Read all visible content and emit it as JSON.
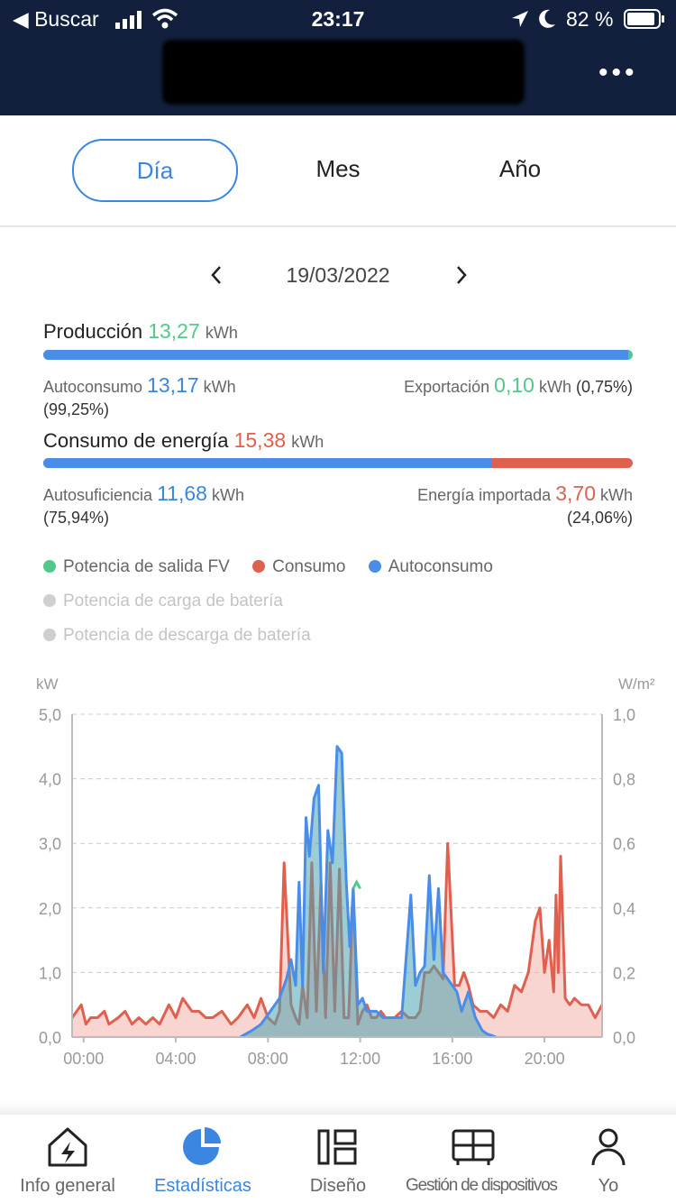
{
  "status_bar": {
    "back_label": "Buscar",
    "time": "23:17",
    "battery": "82 %"
  },
  "header": {
    "more_icon": "more-dots-icon"
  },
  "tabs": [
    {
      "label": "Día",
      "active": true
    },
    {
      "label": "Mes",
      "active": false
    },
    {
      "label": "Año",
      "active": false
    }
  ],
  "date": {
    "value": "19/03/2022"
  },
  "production": {
    "title": "Producción",
    "value": "13,27",
    "unit": "kWh",
    "self_share": 0.9925,
    "left_label": "Autoconsumo",
    "left_value": "13,17",
    "left_unit": "kWh",
    "left_pct": "(99,25%)",
    "right_label": "Exportación",
    "right_value": "0,10",
    "right_unit": "kWh",
    "right_pct": "(0,75%)"
  },
  "consumption": {
    "title": "Consumo de energía",
    "value": "15,38",
    "unit": "kWh",
    "self_share": 0.7594,
    "left_label": "Autosuficiencia",
    "left_value": "11,68",
    "left_unit": "kWh",
    "left_pct": "(75,94%)",
    "right_label": "Energía importada",
    "right_value": "3,70",
    "right_unit": "kWh",
    "right_pct": "(24,06%)"
  },
  "legend": [
    {
      "label": "Potencia de salida FV",
      "color": "#52c98a",
      "active": true
    },
    {
      "label": "Consumo",
      "color": "#e0604f",
      "active": true
    },
    {
      "label": "Autoconsumo",
      "color": "#4a8de8",
      "active": true
    },
    {
      "label": "Potencia de carga de batería",
      "color": "#cfcfcf",
      "active": false
    },
    {
      "label": "Potencia de descarga de batería",
      "color": "#cfcfcf",
      "active": false
    }
  ],
  "colors": {
    "accent": "#3a86e0",
    "green": "#52c98a",
    "red": "#e0604f",
    "blue": "#4a8de8"
  },
  "nav": [
    {
      "label": "Info general",
      "icon": "house-bolt-icon",
      "active": false
    },
    {
      "label": "Estadísticas",
      "icon": "pie-chart-icon",
      "active": true
    },
    {
      "label": "Diseño",
      "icon": "layout-icon",
      "active": false
    },
    {
      "label": "Gestión de dispositivos",
      "icon": "device-icon",
      "active": false
    },
    {
      "label": "Yo",
      "icon": "user-icon",
      "active": false
    }
  ],
  "chart_data": {
    "type": "area",
    "y_left_unit": "kW",
    "y_right_unit": "W/m²",
    "ylim": [
      0,
      5
    ],
    "y2lim": [
      0,
      1
    ],
    "y_ticks": [
      "0,0",
      "1,0",
      "2,0",
      "3,0",
      "4,0",
      "5,0"
    ],
    "y2_ticks": [
      "0,0",
      "0,2",
      "0,4",
      "0,6",
      "0,8",
      "1,0"
    ],
    "x_ticks": [
      {
        "t": 0.5,
        "label": "00:00"
      },
      {
        "t": 4.5,
        "label": "04:00"
      },
      {
        "t": 8.5,
        "label": "08:00"
      },
      {
        "t": 12.5,
        "label": "12:00"
      },
      {
        "t": 16.5,
        "label": "16:00"
      },
      {
        "t": 20.5,
        "label": "20:00"
      }
    ],
    "xlim": [
      0,
      23
    ],
    "grid": true,
    "series": [
      {
        "name": "Consumo",
        "color": "#e0604f",
        "x": [
          0,
          0.4,
          0.6,
          0.8,
          1.1,
          1.4,
          1.6,
          2.0,
          2.3,
          2.6,
          2.9,
          3.2,
          3.5,
          3.8,
          4.2,
          4.5,
          4.8,
          5.2,
          5.5,
          5.8,
          6.1,
          6.5,
          6.9,
          7.2,
          7.6,
          7.9,
          8.2,
          8.5,
          8.8,
          9.0,
          9.2,
          9.5,
          9.7,
          9.85,
          10.0,
          10.2,
          10.4,
          10.6,
          10.8,
          11.0,
          11.2,
          11.4,
          11.6,
          11.8,
          12.0,
          12.2,
          12.4,
          12.6,
          12.8,
          13.0,
          13.2,
          13.4,
          13.6,
          14.0,
          14.3,
          14.6,
          14.9,
          15.1,
          15.3,
          15.5,
          15.7,
          15.9,
          16.1,
          16.3,
          16.6,
          16.8,
          17.0,
          17.2,
          17.4,
          17.7,
          18.0,
          18.3,
          18.6,
          18.9,
          19.2,
          19.5,
          19.8,
          20.1,
          20.3,
          20.5,
          20.7,
          20.9,
          21.0,
          21.1,
          21.2,
          21.4,
          21.6,
          21.8,
          22.1,
          22.4,
          22.7,
          23.0
        ],
        "y": [
          0.3,
          0.5,
          0.2,
          0.3,
          0.3,
          0.4,
          0.2,
          0.3,
          0.4,
          0.2,
          0.3,
          0.2,
          0.3,
          0.2,
          0.5,
          0.3,
          0.6,
          0.4,
          0.4,
          0.3,
          0.3,
          0.4,
          0.2,
          0.3,
          0.5,
          0.3,
          0.6,
          0.3,
          0.2,
          0.4,
          2.7,
          0.5,
          0.3,
          0.2,
          0.8,
          0.3,
          2.7,
          0.4,
          2.4,
          0.3,
          2.7,
          0.4,
          2.6,
          0.3,
          0.3,
          2.3,
          0.2,
          0.4,
          0.5,
          0.3,
          0.3,
          0.4,
          0.3,
          0.3,
          0.4,
          0.3,
          0.3,
          0.4,
          1.0,
          1.0,
          1.1,
          1.0,
          0.9,
          3.0,
          0.8,
          0.8,
          1.0,
          0.8,
          0.5,
          0.4,
          0.4,
          0.3,
          0.5,
          0.4,
          0.8,
          0.7,
          1.0,
          1.8,
          2.0,
          1.0,
          1.5,
          0.7,
          2.2,
          1.0,
          2.8,
          0.6,
          0.5,
          0.6,
          0.5,
          0.5,
          0.3,
          0.5
        ]
      },
      {
        "name": "Autoconsumo",
        "color": "#4a8de8",
        "x": [
          7.3,
          7.8,
          8.2,
          8.6,
          9.0,
          9.3,
          9.5,
          9.7,
          9.85,
          10.0,
          10.15,
          10.3,
          10.5,
          10.7,
          10.9,
          11.1,
          11.3,
          11.5,
          11.7,
          11.9,
          12.05,
          12.2,
          12.4,
          12.6,
          12.8,
          13.0,
          13.2,
          13.5,
          13.9,
          14.3,
          14.7,
          14.9,
          15.1,
          15.3,
          15.5,
          15.7,
          15.9,
          16.1,
          16.3,
          16.5,
          16.7,
          16.9,
          17.2,
          17.5,
          17.8,
          18.0,
          18.4
        ],
        "y": [
          0,
          0.1,
          0.2,
          0.4,
          0.6,
          0.9,
          1.2,
          0.8,
          2.4,
          0.8,
          3.4,
          2.8,
          3.7,
          3.9,
          1.0,
          3.2,
          2.7,
          4.5,
          4.4,
          2.4,
          1.4,
          2.3,
          0.5,
          0.6,
          0.4,
          0.4,
          0.4,
          0.3,
          0.3,
          0.3,
          2.2,
          0.8,
          1.0,
          1.1,
          2.5,
          1.2,
          2.3,
          1.0,
          0.9,
          0.8,
          0.7,
          0.4,
          0.7,
          0.3,
          0.1,
          0.05,
          0
        ]
      },
      {
        "name": "Potencia de salida FV",
        "color": "#52c98a",
        "x": [
          12.2,
          12.35,
          12.5
        ],
        "y": [
          2.3,
          2.4,
          2.3
        ]
      }
    ]
  }
}
